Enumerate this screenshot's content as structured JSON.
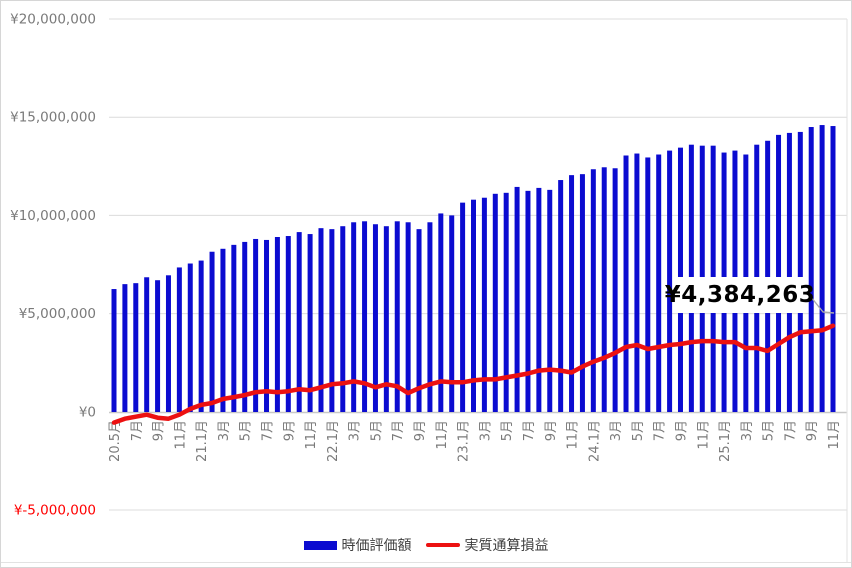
{
  "chart_data": {
    "type": "combo",
    "description": "Monthly portfolio market value (bars) vs real cumulative profit/loss (line), May 2020 - Nov 2025",
    "n_points": 67,
    "tick_every": 2,
    "x_tick_labels": [
      "20.5月",
      "7月",
      "9月",
      "11月",
      "21.1月",
      "3月",
      "5月",
      "7月",
      "9月",
      "11月",
      "22.1月",
      "3月",
      "5月",
      "7月",
      "9月",
      "11月",
      "23.1月",
      "3月",
      "5月",
      "7月",
      "9月",
      "11月",
      "24.1月",
      "3月",
      "5月",
      "7月",
      "9月",
      "11月",
      "25.1月",
      "3月",
      "5月",
      "7月",
      "9月",
      "11月"
    ],
    "y_axis": {
      "tick_labels": [
        "¥20,000,000",
        "¥15,000,000",
        "¥10,000,000",
        "¥5,000,000",
        "¥0",
        "¥-5,000,000"
      ],
      "tick_values": [
        20000000,
        15000000,
        10000000,
        5000000,
        0,
        -5000000
      ],
      "min": -5000000,
      "max": 20000000,
      "step": 5000000,
      "label_color": "#7a7a7a",
      "negative_label_color": "#ff0000",
      "grid": true
    },
    "series": [
      {
        "name": "時価評価額",
        "type": "bar",
        "color": "#0b0bd0",
        "values_million_yen": [
          6.25,
          6.5,
          6.55,
          6.85,
          6.7,
          6.95,
          7.35,
          7.55,
          7.7,
          8.15,
          8.3,
          8.5,
          8.65,
          8.8,
          8.75,
          8.9,
          8.95,
          9.15,
          9.05,
          9.35,
          9.3,
          9.45,
          9.65,
          9.7,
          9.55,
          9.45,
          9.7,
          9.65,
          9.3,
          9.65,
          10.1,
          10.0,
          10.65,
          10.8,
          10.9,
          11.1,
          11.15,
          11.45,
          11.25,
          11.4,
          11.3,
          11.8,
          12.05,
          12.1,
          12.35,
          12.45,
          12.4,
          13.05,
          13.15,
          12.95,
          13.1,
          13.3,
          13.45,
          13.6,
          13.55,
          13.55,
          13.2,
          13.3,
          13.1,
          13.6,
          13.8,
          14.1,
          14.2,
          14.25,
          14.5,
          14.6,
          14.55
        ]
      },
      {
        "name": "実質通算損益",
        "type": "line",
        "color": "#ec1111",
        "values_million_yen": [
          -0.55,
          -0.35,
          -0.25,
          -0.15,
          -0.3,
          -0.35,
          -0.15,
          0.15,
          0.35,
          0.45,
          0.65,
          0.75,
          0.85,
          1.0,
          1.05,
          1.0,
          1.05,
          1.15,
          1.1,
          1.25,
          1.4,
          1.45,
          1.55,
          1.45,
          1.25,
          1.4,
          1.3,
          0.95,
          1.2,
          1.4,
          1.55,
          1.5,
          1.5,
          1.6,
          1.65,
          1.65,
          1.75,
          1.85,
          1.95,
          2.1,
          2.15,
          2.1,
          2.0,
          2.3,
          2.55,
          2.75,
          3.0,
          3.3,
          3.4,
          3.2,
          3.3,
          3.4,
          3.45,
          3.55,
          3.6,
          3.6,
          3.55,
          3.55,
          3.25,
          3.25,
          3.1,
          3.45,
          3.8,
          4.05,
          4.1,
          4.15,
          4.384263
        ]
      }
    ],
    "annotation": {
      "label": "¥4,384,263",
      "value": 4384263,
      "points_to": "last point of 実質通算損益 line"
    },
    "legend": {
      "position": "bottom-center",
      "items": [
        "時価評価額",
        "実質通算損益"
      ]
    }
  }
}
